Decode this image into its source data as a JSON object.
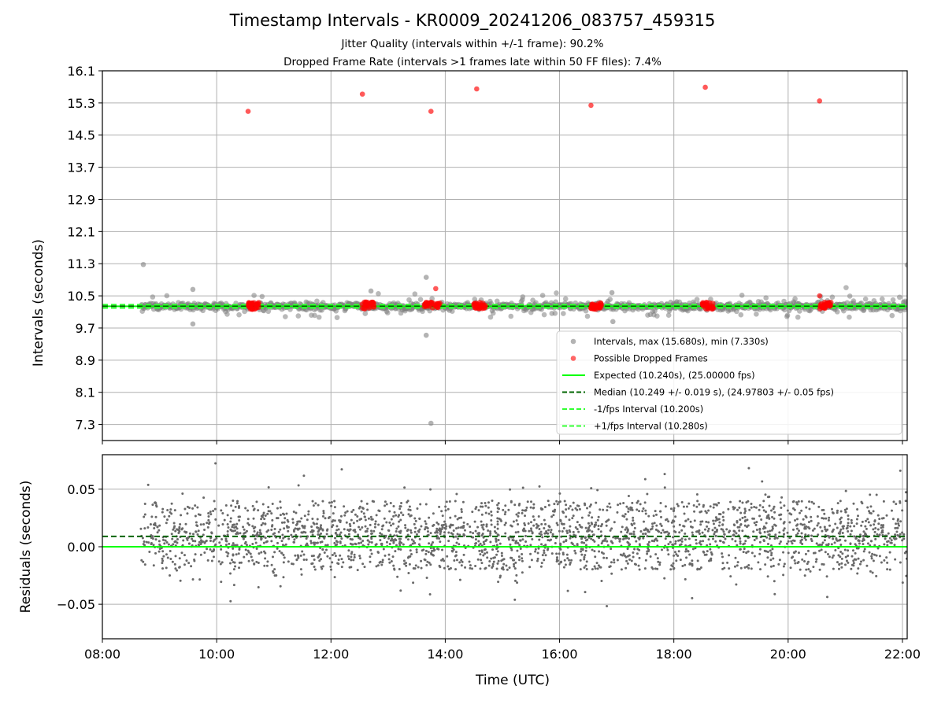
{
  "title": "Timestamp Intervals - KR0009_20241206_083757_459315",
  "subtitle_1": "Jitter Quality (intervals within +/-1 frame): 90.2%",
  "subtitle_2": "Dropped Frame Rate (intervals >1 frames late within 50 FF files): 7.4%",
  "colors": {
    "intervals": "#808080",
    "dropped": "#ff0000",
    "expected": "#00ff00",
    "median": "#006400",
    "fps_bounds": "#32ff32",
    "residuals": "#696969",
    "grid": "#b0b0b0"
  },
  "chart_data": [
    {
      "type": "scatter",
      "panel": "top",
      "ylabel": "Intervals (seconds)",
      "xlim": [
        "08:00",
        "22:05"
      ],
      "ylim": [
        6.9,
        16.1
      ],
      "yticks": [
        "7.3",
        "8.1",
        "8.9",
        "9.7",
        "10.5",
        "11.3",
        "12.1",
        "12.9",
        "13.7",
        "14.5",
        "15.3",
        "16.1"
      ],
      "grid": true,
      "legend_position": "lower right",
      "series": [
        {
          "name": "Intervals, max (15.680s), min (7.330s)",
          "kind": "points",
          "color": "#808080",
          "band": {
            "x_start": "08:40",
            "x_end": "22:05",
            "center": 10.24,
            "spread": 0.12
          },
          "outliers": [
            {
              "x": "08:43",
              "y": 11.28
            },
            {
              "x": "09:35",
              "y": 10.66
            },
            {
              "x": "09:35",
              "y": 9.8
            },
            {
              "x": "12:42",
              "y": 10.62
            },
            {
              "x": "13:40",
              "y": 10.96
            },
            {
              "x": "13:40",
              "y": 9.52
            },
            {
              "x": "13:45",
              "y": 7.33
            },
            {
              "x": "16:55",
              "y": 10.58
            },
            {
              "x": "16:56",
              "y": 9.86
            },
            {
              "x": "22:05",
              "y": 11.27
            }
          ]
        },
        {
          "name": "Possible Dropped Frames",
          "kind": "points",
          "color": "#ff0000",
          "points": [
            {
              "x": "10:33",
              "y": 15.09
            },
            {
              "x": "12:33",
              "y": 15.52
            },
            {
              "x": "13:45",
              "y": 15.09
            },
            {
              "x": "14:33",
              "y": 15.65
            },
            {
              "x": "16:33",
              "y": 15.24
            },
            {
              "x": "18:33",
              "y": 15.69
            },
            {
              "x": "20:33",
              "y": 15.35
            },
            {
              "x": "13:50",
              "y": 10.68
            },
            {
              "x": "20:33",
              "y": 10.5
            }
          ],
          "clusters": [
            {
              "x_start": "10:33",
              "x_end": "10:45",
              "y": 10.25
            },
            {
              "x_start": "12:33",
              "x_end": "12:45",
              "y": 10.26
            },
            {
              "x_start": "13:38",
              "x_end": "13:55",
              "y": 10.26
            },
            {
              "x_start": "14:30",
              "x_end": "14:42",
              "y": 10.25
            },
            {
              "x_start": "16:33",
              "x_end": "16:45",
              "y": 10.25
            },
            {
              "x_start": "18:30",
              "x_end": "18:42",
              "y": 10.25
            },
            {
              "x_start": "20:33",
              "x_end": "20:45",
              "y": 10.26
            }
          ]
        },
        {
          "name": "Expected (10.240s), (25.00000 fps)",
          "kind": "hline",
          "y": 10.24,
          "color": "#00ff00",
          "style": "solid"
        },
        {
          "name": "Median (10.249 +/- 0.019 s), (24.97803 +/- 0.05 fps)",
          "kind": "hline",
          "y": 10.249,
          "color": "#006400",
          "style": "dashed"
        },
        {
          "name": "-1/fps Interval (10.200s)",
          "kind": "hline",
          "y": 10.2,
          "color": "#32ff32",
          "style": "dashed"
        },
        {
          "name": "+1/fps Interval (10.280s)",
          "kind": "hline",
          "y": 10.28,
          "color": "#32ff32",
          "style": "dashed"
        }
      ]
    },
    {
      "type": "scatter",
      "panel": "bottom",
      "ylabel": "Residuals (seconds)",
      "xlabel": "Time (UTC)",
      "xlim": [
        "08:00",
        "22:05"
      ],
      "xticks": [
        "08:00",
        "10:00",
        "12:00",
        "14:00",
        "16:00",
        "18:00",
        "20:00",
        "22:00"
      ],
      "ylim": [
        -0.08,
        0.08
      ],
      "yticks": [
        "−0.05",
        "0.00",
        "0.05"
      ],
      "grid": true,
      "series": [
        {
          "kind": "points",
          "color": "#696969",
          "x_start": "08:40",
          "x_end": "22:05",
          "center": 0.009,
          "spread": 0.019,
          "range": [
            -0.08,
            0.08
          ]
        },
        {
          "kind": "hline",
          "y": 0.0,
          "color": "#00ff00",
          "style": "solid"
        },
        {
          "kind": "hline",
          "y": 0.009,
          "color": "#006400",
          "style": "dashed"
        }
      ]
    }
  ]
}
